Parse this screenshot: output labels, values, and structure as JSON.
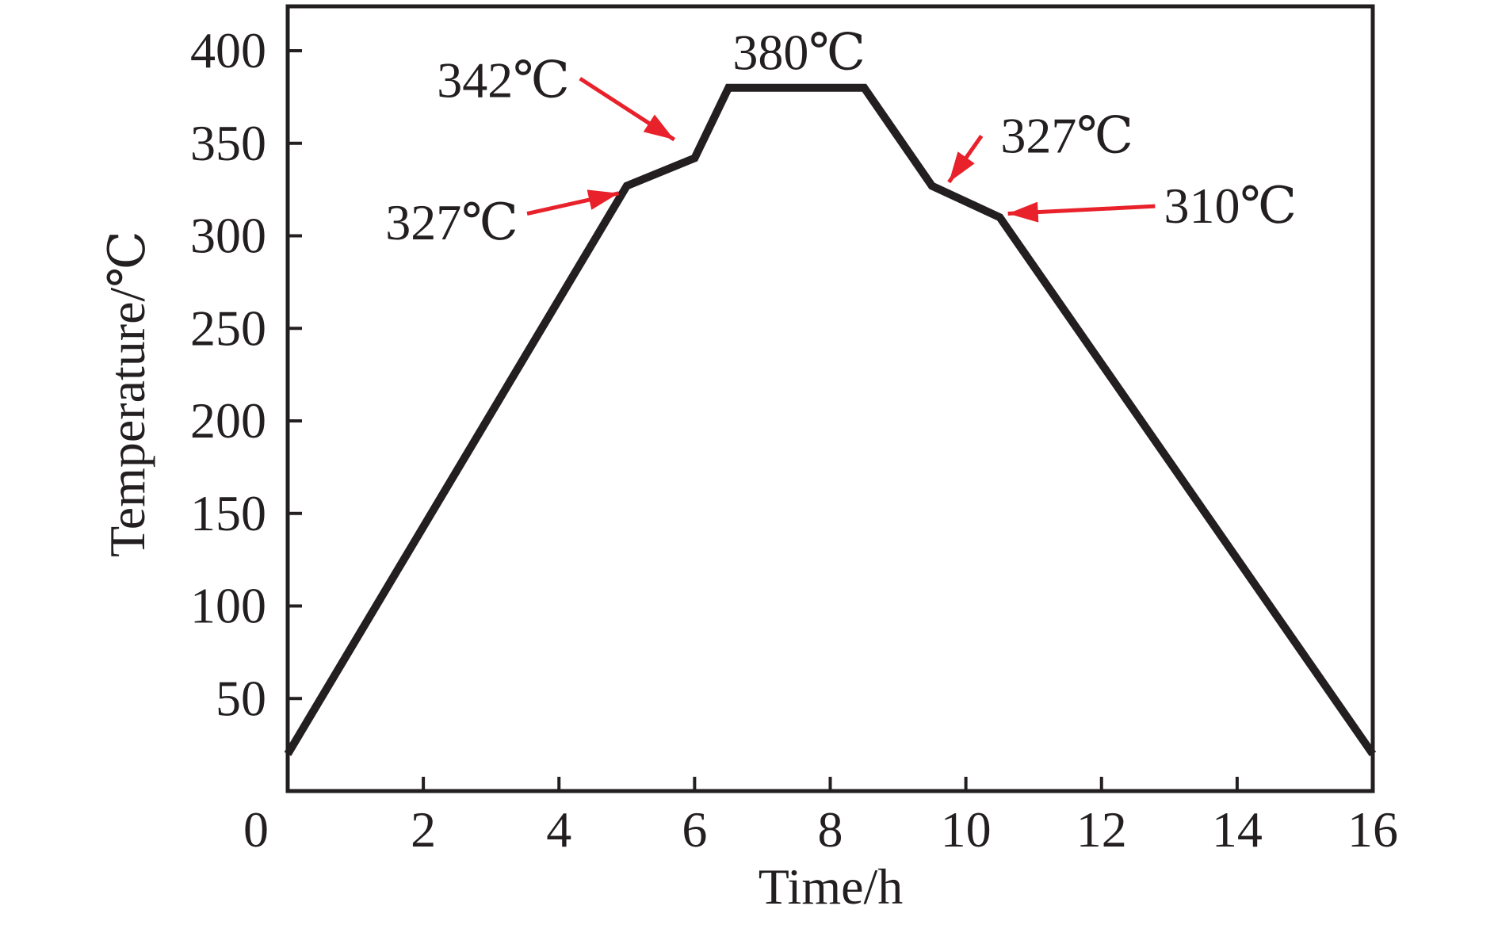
{
  "figure": {
    "background": "#ffffff",
    "ink_color": "#231f20",
    "accent_color": "#e8212b"
  },
  "chart_data": {
    "type": "line",
    "title": "",
    "xlabel": "Time/h",
    "ylabel": "Temperature/℃",
    "xlim": [
      0,
      16
    ],
    "ylim": [
      0,
      424
    ],
    "grid": false,
    "legend": null,
    "x_ticks": {
      "values": [
        0,
        2,
        4,
        6,
        8,
        10,
        12,
        14,
        16
      ],
      "labels": [
        "0",
        "2",
        "4",
        "6",
        "8",
        "10",
        "12",
        "14",
        "16"
      ]
    },
    "y_ticks": {
      "values": [
        50,
        100,
        150,
        200,
        250,
        300,
        350,
        400
      ],
      "labels": [
        "50",
        "100",
        "150",
        "200",
        "250",
        "300",
        "350",
        "400"
      ]
    },
    "series": [
      {
        "name": "temperature-profile",
        "color": "#231f20",
        "points": [
          [
            0,
            20
          ],
          [
            5,
            327
          ],
          [
            6,
            342
          ],
          [
            6.5,
            380
          ],
          [
            8.5,
            380
          ],
          [
            9.5,
            327
          ],
          [
            10.5,
            310
          ],
          [
            16,
            20
          ]
        ]
      }
    ],
    "annotations": [
      {
        "label": "342℃",
        "x": 3.18,
        "y": 384,
        "arrow": {
          "from": [
            4.31,
            385
          ],
          "to": [
            5.7,
            352
          ]
        }
      },
      {
        "label": "327℃",
        "x": 2.42,
        "y": 307,
        "arrow": {
          "from": [
            3.53,
            312
          ],
          "to": [
            4.88,
            323
          ]
        }
      },
      {
        "label": "380℃",
        "x": 7.54,
        "y": 399,
        "arrow": null
      },
      {
        "label": "327℃",
        "x": 11.49,
        "y": 354,
        "arrow": {
          "from": [
            10.23,
            354
          ],
          "to": [
            9.75,
            329
          ]
        }
      },
      {
        "label": "310℃",
        "x": 13.9,
        "y": 316,
        "arrow": {
          "from": [
            12.79,
            316
          ],
          "to": [
            10.62,
            312
          ]
        }
      }
    ],
    "annotation_color": "#e8212b"
  }
}
